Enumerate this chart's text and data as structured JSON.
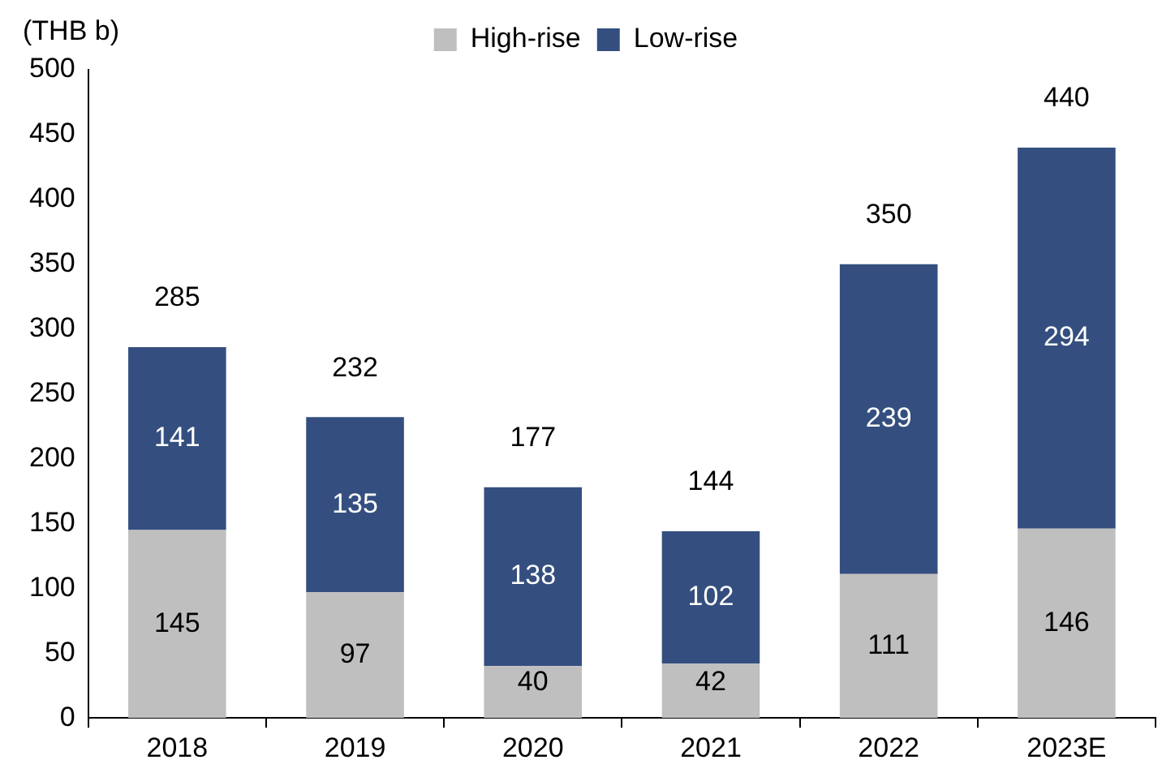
{
  "chart_data": {
    "type": "bar",
    "ylabel": "(THB b)",
    "categories": [
      "2018",
      "2019",
      "2020",
      "2021",
      "2022",
      "2023E"
    ],
    "series": [
      {
        "name": "High-rise",
        "color": "#bfbfbf",
        "values": [
          145,
          97,
          40,
          42,
          111,
          146
        ]
      },
      {
        "name": "Low-rise",
        "color": "#344f7f",
        "values": [
          141,
          135,
          138,
          102,
          239,
          294
        ]
      }
    ],
    "stacked": true,
    "data_labels": true,
    "totals": [
      "285",
      "232",
      "177",
      "144",
      "350",
      "440"
    ],
    "ylim": [
      0,
      500
    ],
    "yticks": [
      0,
      50,
      100,
      150,
      200,
      250,
      300,
      350,
      400,
      450,
      500
    ],
    "grid": false,
    "legend": "top"
  }
}
